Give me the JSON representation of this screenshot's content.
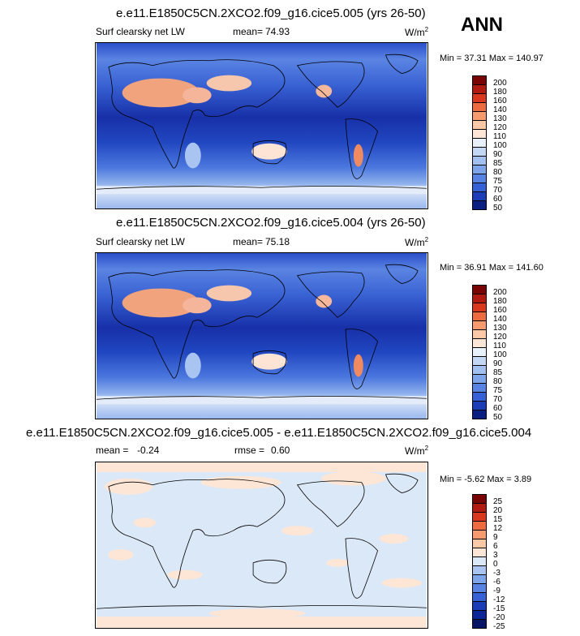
{
  "season_label": "ANN",
  "panels": [
    {
      "title": "e.e11.E1850C5CN.2XCO2.f09_g16.cice5.005 (yrs 26-50)",
      "variable": "Surf clearsky net LW",
      "stat_label": "mean=",
      "stat_value": "74.93",
      "units": "W/m",
      "units_sup": "2",
      "minmax": "Min = 37.31 Max = 140.97",
      "colorbar": [
        "200",
        "180",
        "160",
        "140",
        "130",
        "120",
        "110",
        "100",
        "90",
        "85",
        "80",
        "75",
        "70",
        "60",
        "50"
      ]
    },
    {
      "title": "e.e11.E1850C5CN.2XCO2.f09_g16.cice5.004 (yrs 26-50)",
      "variable": "Surf clearsky net LW",
      "stat_label": "mean=",
      "stat_value": "75.18",
      "units": "W/m",
      "units_sup": "2",
      "minmax": "Min = 36.91 Max = 141.60",
      "colorbar": [
        "200",
        "180",
        "160",
        "140",
        "130",
        "120",
        "110",
        "100",
        "90",
        "85",
        "80",
        "75",
        "70",
        "60",
        "50"
      ]
    },
    {
      "title": "e.e11.E1850C5CN.2XCO2.f09_g16.cice5.005 - e.e11.E1850C5CN.2XCO2.f09_g16.cice5.004",
      "stat_label": "mean =",
      "stat_value": "-0.24",
      "stat2_label": "rmse =",
      "stat2_value": "0.60",
      "units": "W/m",
      "units_sup": "2",
      "minmax": "Min = -5.62 Max =  3.89",
      "colorbar": [
        "25",
        "20",
        "15",
        "12",
        "9",
        "6",
        "3",
        "0",
        "-3",
        "-6",
        "-9",
        "-12",
        "-15",
        "-20",
        "-25"
      ]
    }
  ],
  "colors": {
    "abs_scale": [
      "#7a0403",
      "#b01a10",
      "#d9381f",
      "#ee6a3f",
      "#f79a6e",
      "#fbc8a8",
      "#fde6d6",
      "#e8f0fb",
      "#c4d8f5",
      "#a3c1f0",
      "#7ea4ea",
      "#5883e3",
      "#3660d6",
      "#1c3cb8",
      "#0b1f82"
    ],
    "diff_scale": [
      "#7a0403",
      "#b01a10",
      "#d9381f",
      "#ee6a3f",
      "#f79a6e",
      "#fbc8a8",
      "#fde6d6",
      "#dbe8f8",
      "#a8c4ef",
      "#7ea4ea",
      "#5883e3",
      "#3660d6",
      "#1c3cb8",
      "#0b2598",
      "#061566"
    ]
  }
}
